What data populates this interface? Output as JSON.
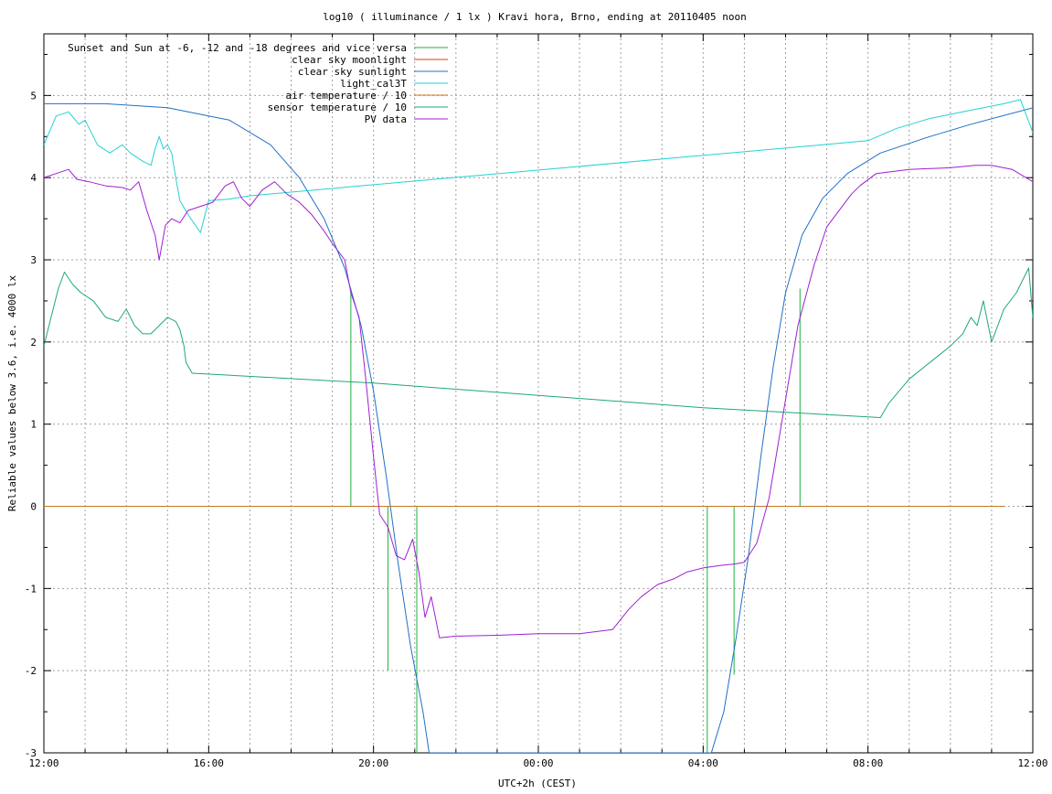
{
  "chart_data": {
    "type": "line",
    "title": "log10 ( illuminance / 1 lx ) Kravi hora, Brno, ending at 20110405 noon",
    "xlabel": "UTC+2h (CEST)",
    "ylabel": "Reliable values below 3.6, i.e. 4000 lx",
    "xlim": [
      0,
      24
    ],
    "ylim": [
      -3,
      5.75
    ],
    "grid": true,
    "legend_position": "top-right",
    "x_ticks": [
      {
        "value": 0,
        "label": "12:00"
      },
      {
        "value": 4,
        "label": "16:00"
      },
      {
        "value": 8,
        "label": "20:00"
      },
      {
        "value": 12,
        "label": "00:00"
      },
      {
        "value": 16,
        "label": "04:00"
      },
      {
        "value": 20,
        "label": "08:00"
      },
      {
        "value": 24,
        "label": "12:00"
      }
    ],
    "y_ticks": [
      {
        "value": -3,
        "label": "-3"
      },
      {
        "value": -2,
        "label": "-2"
      },
      {
        "value": -1,
        "label": "-1"
      },
      {
        "value": 0,
        "label": "0"
      },
      {
        "value": 1,
        "label": "1"
      },
      {
        "value": 2,
        "label": "2"
      },
      {
        "value": 3,
        "label": "3"
      },
      {
        "value": 4,
        "label": "4"
      },
      {
        "value": 5,
        "label": "5"
      }
    ],
    "series": [
      {
        "name": "Sunset and Sun at -6, -12 and -18 degrees and vice versa",
        "color": "#1fb141",
        "kind": "spikes",
        "spikes": [
          {
            "x": 7.45,
            "y": 2.65
          },
          {
            "x": 8.35,
            "y": -2.0
          },
          {
            "x": 9.05,
            "y": -3.0
          },
          {
            "x": 16.1,
            "y": -3.0
          },
          {
            "x": 16.75,
            "y": -2.05
          },
          {
            "x": 18.35,
            "y": 2.65
          }
        ]
      },
      {
        "name": "clear sky moonlight",
        "color": "#c8461e",
        "x": [
          0,
          23.3
        ],
        "y": [
          0,
          0
        ]
      },
      {
        "name": "clear sky sunlight",
        "color": "#1f6fc8",
        "x": [
          0,
          1.5,
          3,
          4.5,
          5.5,
          6.2,
          6.8,
          7.3,
          7.7,
          8.0,
          8.3,
          8.6,
          8.9,
          9.2,
          9.35,
          16.2,
          16.5,
          16.8,
          17.1,
          17.4,
          17.7,
          18.0,
          18.4,
          18.9,
          19.5,
          20.3,
          21.5,
          22.5,
          24
        ],
        "y": [
          4.9,
          4.9,
          4.85,
          4.7,
          4.4,
          4.0,
          3.5,
          2.9,
          2.2,
          1.4,
          0.4,
          -0.7,
          -1.7,
          -2.5,
          -3.0,
          -3.0,
          -2.5,
          -1.6,
          -0.6,
          0.6,
          1.7,
          2.6,
          3.3,
          3.75,
          4.05,
          4.3,
          4.5,
          4.65,
          4.85
        ]
      },
      {
        "name": "light_cal3T",
        "color": "#22d2d2",
        "x": [
          0,
          0.3,
          0.6,
          0.85,
          1.0,
          1.3,
          1.6,
          1.9,
          2.1,
          2.4,
          2.6,
          2.7,
          2.8,
          2.9,
          3.0,
          3.1,
          3.2,
          3.3,
          3.5,
          3.8,
          4.0,
          4.5,
          5.0,
          20.0,
          20.7,
          21.5,
          22.3,
          22.8,
          23.3,
          23.7,
          24
        ],
        "y": [
          4.4,
          4.75,
          4.8,
          4.65,
          4.7,
          4.4,
          4.3,
          4.4,
          4.3,
          4.2,
          4.15,
          4.35,
          4.5,
          4.35,
          4.4,
          4.3,
          4.0,
          3.72,
          3.55,
          3.33,
          3.72,
          3.74,
          3.78,
          4.45,
          4.6,
          4.72,
          4.8,
          4.85,
          4.9,
          4.95,
          4.55
        ]
      },
      {
        "name": "air temperature / 10",
        "color": "#c8781e",
        "x": [
          0,
          23.3
        ],
        "y": [
          0,
          0
        ]
      },
      {
        "name": "sensor temperature / 10",
        "color": "#1ea878",
        "x": [
          0,
          0.2,
          0.35,
          0.5,
          0.7,
          0.9,
          1.2,
          1.5,
          1.8,
          2.0,
          2.2,
          2.4,
          2.6,
          2.8,
          3.0,
          3.2,
          3.3,
          3.4,
          3.45,
          3.6,
          8.0,
          12.0,
          16.0,
          20.3,
          20.5,
          21.0,
          21.5,
          22.0,
          22.3,
          22.5,
          22.65,
          22.8,
          23.0,
          23.3,
          23.6,
          23.8,
          23.9,
          24
        ],
        "y": [
          1.95,
          2.35,
          2.65,
          2.85,
          2.7,
          2.6,
          2.5,
          2.3,
          2.25,
          2.4,
          2.2,
          2.1,
          2.1,
          2.2,
          2.3,
          2.25,
          2.15,
          1.95,
          1.75,
          1.62,
          1.5,
          1.35,
          1.2,
          1.08,
          1.25,
          1.55,
          1.75,
          1.95,
          2.1,
          2.3,
          2.2,
          2.5,
          2.0,
          2.4,
          2.6,
          2.8,
          2.9,
          2.3
        ]
      },
      {
        "name": "PV data",
        "color": "#9f1fd2",
        "x": [
          0,
          0.3,
          0.6,
          0.8,
          1.1,
          1.5,
          1.9,
          2.1,
          2.3,
          2.5,
          2.7,
          2.8,
          2.95,
          3.1,
          3.3,
          3.5,
          3.8,
          4.1,
          4.4,
          4.6,
          4.8,
          5.0,
          5.3,
          5.6,
          5.9,
          6.2,
          6.5,
          6.8,
          7.0,
          7.3,
          7.45,
          7.65,
          7.8,
          8.0,
          8.15,
          8.35,
          8.55,
          8.75,
          8.95,
          9.1,
          9.25,
          9.4,
          9.6,
          10.0,
          11.0,
          12.0,
          13.0,
          13.8,
          14.2,
          14.5,
          14.9,
          15.3,
          15.6,
          16.0,
          16.4,
          16.8,
          17.0,
          17.3,
          17.6,
          17.9,
          18.3,
          18.7,
          19.0,
          19.3,
          19.6,
          19.8,
          20.2,
          21.0,
          22.0,
          22.6,
          23.0,
          23.5,
          24
        ],
        "y": [
          4.0,
          4.05,
          4.1,
          3.98,
          3.95,
          3.9,
          3.88,
          3.85,
          3.95,
          3.6,
          3.3,
          3.0,
          3.42,
          3.5,
          3.45,
          3.6,
          3.65,
          3.7,
          3.9,
          3.95,
          3.75,
          3.65,
          3.85,
          3.95,
          3.8,
          3.7,
          3.55,
          3.35,
          3.2,
          3.0,
          2.6,
          2.3,
          1.6,
          0.6,
          -0.1,
          -0.25,
          -0.6,
          -0.65,
          -0.4,
          -0.8,
          -1.35,
          -1.1,
          -1.6,
          -1.58,
          -1.57,
          -1.55,
          -1.55,
          -1.5,
          -1.25,
          -1.1,
          -0.95,
          -0.88,
          -0.8,
          -0.75,
          -0.72,
          -0.7,
          -0.68,
          -0.45,
          0.1,
          1.0,
          2.2,
          2.95,
          3.4,
          3.6,
          3.8,
          3.9,
          4.05,
          4.1,
          4.12,
          4.15,
          4.15,
          4.1,
          3.95
        ]
      }
    ]
  }
}
